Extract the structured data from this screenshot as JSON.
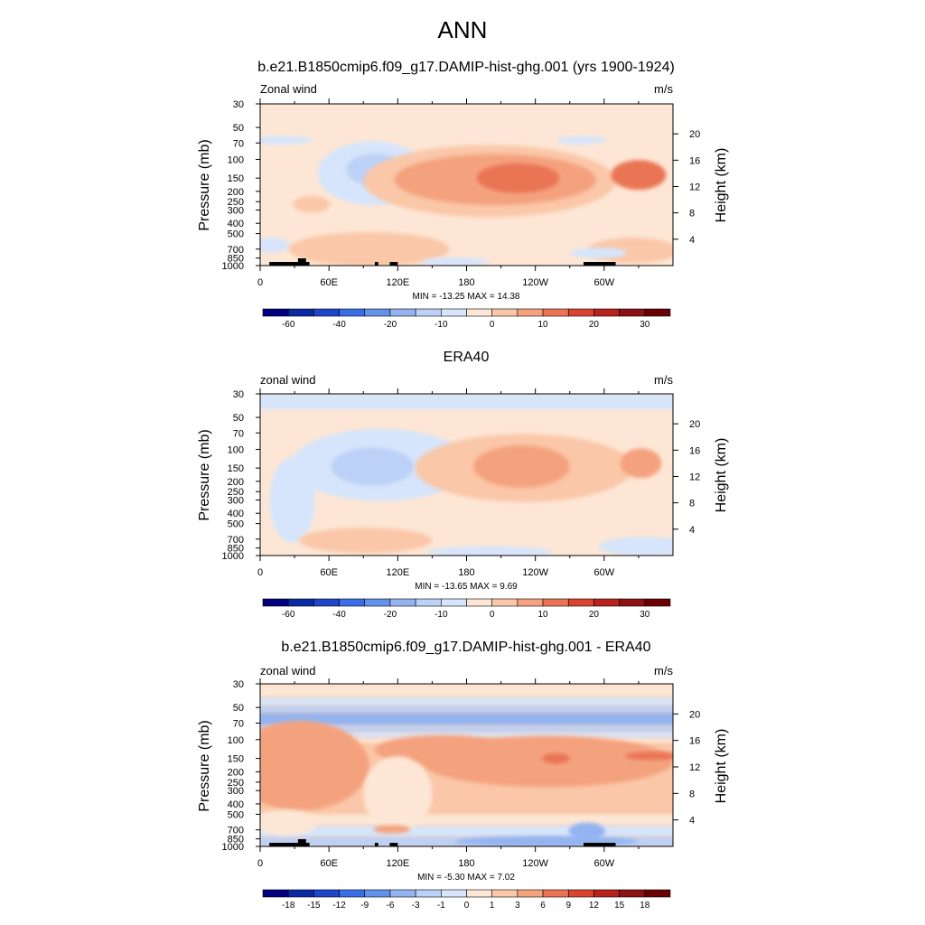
{
  "figure_title": "ANN",
  "colors": {
    "scale_a": [
      "#000080",
      "#0a2aa3",
      "#1e46c8",
      "#3a6ee6",
      "#6392ec",
      "#93b4f1",
      "#bcd1f7",
      "#d6e5fb",
      "#fde6d5",
      "#fac7a8",
      "#f4a27e",
      "#ea7454",
      "#d9442f",
      "#b8231d",
      "#8c1214",
      "#6b0004"
    ],
    "scale_b": [
      "#000080",
      "#0a2aa3",
      "#1e46c8",
      "#3a6ee6",
      "#6392ec",
      "#93b4f1",
      "#bcd1f7",
      "#d6e5fb",
      "#fde6d5",
      "#fac7a8",
      "#f4a27e",
      "#ea7454",
      "#d9442f",
      "#b8231d",
      "#8c1214",
      "#6b0004"
    ],
    "topography": "#000000"
  },
  "panels": [
    {
      "title": "b.e21.B1850cmip6.f09_g17.DAMIP-hist-ghg.001 (yrs 1900-1924)",
      "left_label": "Zonal wind",
      "right_label": "m/s",
      "stats": "MIN = -13.25  MAX =  14.38"
    },
    {
      "title": "ERA40",
      "left_label": "zonal wind",
      "right_label": "m/s",
      "stats": "MIN = -13.65  MAX =   9.69"
    },
    {
      "title": "b.e21.B1850cmip6.f09_g17.DAMIP-hist-ghg.001 - ERA40",
      "left_label": "zonal wind",
      "right_label": "m/s",
      "stats": "MIN =  -5.30  MAX =   7.02"
    }
  ],
  "chart_data": [
    {
      "type": "heatmap",
      "name": "model",
      "xlabel": "",
      "ylabel": "Pressure (mb)",
      "y2label": "Height (km)",
      "x_ticks": [
        "0",
        "60E",
        "120E",
        "180",
        "120W",
        "60W"
      ],
      "x_tick_lon": [
        0,
        60,
        120,
        180,
        240,
        300
      ],
      "xlim": [
        0,
        360
      ],
      "y_ticks": [
        "30",
        "50",
        "70",
        "100",
        "150",
        "200",
        "250",
        "300",
        "400",
        "500",
        "700",
        "850",
        "1000"
      ],
      "y_tick_p": [
        30,
        50,
        70,
        100,
        150,
        200,
        250,
        300,
        400,
        500,
        700,
        850,
        1000
      ],
      "ylim": [
        1000,
        30
      ],
      "y_scale": "log",
      "y2_ticks": [
        "4",
        "8",
        "12",
        "16",
        "20"
      ],
      "y2_tick_km": [
        4,
        8,
        12,
        16,
        20
      ],
      "background_bin": 8,
      "features": [
        {
          "bin": 7,
          "lon": 18,
          "p": 66,
          "rx": 28,
          "ry": 0.04
        },
        {
          "bin": 7,
          "lon": 280,
          "p": 66,
          "rx": 22,
          "ry": 0.04
        },
        {
          "bin": 7,
          "lon": 98,
          "p": 135,
          "rx": 48,
          "ry": 0.3
        },
        {
          "bin": 6,
          "lon": 100,
          "p": 125,
          "rx": 25,
          "ry": 0.15
        },
        {
          "bin": 7,
          "lon": 10,
          "p": 640,
          "rx": 16,
          "ry": 0.07
        },
        {
          "bin": 9,
          "lon": 200,
          "p": 160,
          "rx": 110,
          "ry": 0.34
        },
        {
          "bin": 10,
          "lon": 205,
          "p": 155,
          "rx": 88,
          "ry": 0.24
        },
        {
          "bin": 11,
          "lon": 225,
          "p": 150,
          "rx": 36,
          "ry": 0.14
        },
        {
          "bin": 11,
          "lon": 330,
          "p": 140,
          "rx": 24,
          "ry": 0.14
        },
        {
          "bin": 9,
          "lon": 45,
          "p": 265,
          "rx": 16,
          "ry": 0.08
        },
        {
          "bin": 9,
          "lon": 95,
          "p": 700,
          "rx": 70,
          "ry": 0.16
        },
        {
          "bin": 9,
          "lon": 325,
          "p": 720,
          "rx": 40,
          "ry": 0.12
        },
        {
          "bin": 7,
          "lon": 170,
          "p": 920,
          "rx": 30,
          "ry": 0.04
        },
        {
          "bin": 7,
          "lon": 295,
          "p": 760,
          "rx": 25,
          "ry": 0.05
        }
      ],
      "topography": [
        [
          8,
          35
        ],
        [
          28,
          43
        ],
        [
          100,
          103
        ],
        [
          113,
          120
        ],
        [
          282,
          310
        ]
      ],
      "colorbar_labels": [
        "-60",
        "-40",
        "-20",
        "-10",
        "0",
        "10",
        "20",
        "30"
      ],
      "stats_min": -13.25,
      "stats_max": 14.38
    },
    {
      "type": "heatmap",
      "name": "observations",
      "xlabel": "",
      "ylabel": "Pressure (mb)",
      "y2label": "Height (km)",
      "x_ticks": [
        "0",
        "60E",
        "120E",
        "180",
        "120W",
        "60W"
      ],
      "x_tick_lon": [
        0,
        60,
        120,
        180,
        240,
        300
      ],
      "xlim": [
        0,
        360
      ],
      "y_ticks": [
        "30",
        "50",
        "70",
        "100",
        "150",
        "200",
        "250",
        "300",
        "400",
        "500",
        "700",
        "850",
        "1000"
      ],
      "y_tick_p": [
        30,
        50,
        70,
        100,
        150,
        200,
        250,
        300,
        400,
        500,
        700,
        850,
        1000
      ],
      "ylim": [
        1000,
        30
      ],
      "y_scale": "log",
      "y2_ticks": [
        "4",
        "8",
        "12",
        "16",
        "20"
      ],
      "y2_tick_km": [
        4,
        8,
        12,
        16,
        20
      ],
      "background_bin": 8,
      "bands": [
        {
          "bin": 7,
          "p_top": 30,
          "p_bottom": 42
        }
      ],
      "features": [
        {
          "bin": 7,
          "lon": 105,
          "p": 140,
          "rx": 78,
          "ry": 0.34
        },
        {
          "bin": 7,
          "lon": 28,
          "p": 300,
          "rx": 20,
          "ry": 0.4
        },
        {
          "bin": 6,
          "lon": 98,
          "p": 145,
          "rx": 36,
          "ry": 0.18
        },
        {
          "bin": 9,
          "lon": 230,
          "p": 150,
          "rx": 95,
          "ry": 0.32
        },
        {
          "bin": 10,
          "lon": 228,
          "p": 145,
          "rx": 42,
          "ry": 0.2
        },
        {
          "bin": 10,
          "lon": 332,
          "p": 135,
          "rx": 18,
          "ry": 0.14
        },
        {
          "bin": 9,
          "lon": 92,
          "p": 720,
          "rx": 58,
          "ry": 0.12
        },
        {
          "bin": 7,
          "lon": 200,
          "p": 920,
          "rx": 55,
          "ry": 0.05
        },
        {
          "bin": 7,
          "lon": 335,
          "p": 820,
          "rx": 40,
          "ry": 0.09
        }
      ],
      "topography": [],
      "colorbar_labels": [
        "-60",
        "-40",
        "-20",
        "-10",
        "0",
        "10",
        "20",
        "30"
      ],
      "stats_min": -13.65,
      "stats_max": 9.69
    },
    {
      "type": "heatmap",
      "name": "difference",
      "xlabel": "",
      "ylabel": "Pressure (mb)",
      "y2label": "Height (km)",
      "x_ticks": [
        "0",
        "60E",
        "120E",
        "180",
        "120W",
        "60W"
      ],
      "x_tick_lon": [
        0,
        60,
        120,
        180,
        240,
        300
      ],
      "xlim": [
        0,
        360
      ],
      "y_ticks": [
        "30",
        "50",
        "70",
        "100",
        "150",
        "200",
        "250",
        "300",
        "400",
        "500",
        "700",
        "850",
        "1000"
      ],
      "y_tick_p": [
        30,
        50,
        70,
        100,
        150,
        200,
        250,
        300,
        400,
        500,
        700,
        850,
        1000
      ],
      "ylim": [
        1000,
        30
      ],
      "y_scale": "log",
      "y2_ticks": [
        "4",
        "8",
        "12",
        "16",
        "20"
      ],
      "y2_tick_km": [
        4,
        8,
        12,
        16,
        20
      ],
      "background_bin": 9,
      "bands": [
        {
          "bin": 8,
          "p_top": 30,
          "p_bottom": 40
        },
        {
          "bin": 7,
          "p_top": 40,
          "p_bottom": 48
        },
        {
          "bin": 6,
          "p_top": 48,
          "p_bottom": 56
        },
        {
          "bin": 5,
          "p_top": 56,
          "p_bottom": 74
        },
        {
          "bin": 6,
          "p_top": 74,
          "p_bottom": 86
        },
        {
          "bin": 7,
          "p_top": 86,
          "p_bottom": 98
        },
        {
          "bin": 8,
          "p_top": 98,
          "p_bottom": 110
        },
        {
          "bin": 9,
          "p_top": 110,
          "p_bottom": 500
        },
        {
          "bin": 8,
          "p_top": 500,
          "p_bottom": 640
        },
        {
          "bin": 7,
          "p_top": 640,
          "p_bottom": 820
        },
        {
          "bin": 6,
          "p_top": 820,
          "p_bottom": 1000
        }
      ],
      "features": [
        {
          "bin": 10,
          "lon": 35,
          "p": 175,
          "rx": 60,
          "ry": 0.42
        },
        {
          "bin": 10,
          "lon": 250,
          "p": 160,
          "rx": 110,
          "ry": 0.24
        },
        {
          "bin": 10,
          "lon": 160,
          "p": 125,
          "rx": 60,
          "ry": 0.14
        },
        {
          "bin": 11,
          "lon": 258,
          "p": 150,
          "rx": 12,
          "ry": 0.05
        },
        {
          "bin": 11,
          "lon": 342,
          "p": 142,
          "rx": 24,
          "ry": 0.04
        },
        {
          "bin": 8,
          "lon": 120,
          "p": 320,
          "rx": 30,
          "ry": 0.35
        },
        {
          "bin": 8,
          "lon": 22,
          "p": 600,
          "rx": 28,
          "ry": 0.12
        },
        {
          "bin": 10,
          "lon": 115,
          "p": 690,
          "rx": 16,
          "ry": 0.04
        },
        {
          "bin": 5,
          "lon": 285,
          "p": 720,
          "rx": 16,
          "ry": 0.08
        },
        {
          "bin": 5,
          "lon": 250,
          "p": 900,
          "rx": 80,
          "ry": 0.05
        }
      ],
      "topography": [
        [
          8,
          35
        ],
        [
          28,
          43
        ],
        [
          100,
          103
        ],
        [
          113,
          120
        ],
        [
          282,
          310
        ]
      ],
      "colorbar_labels": [
        "-18",
        "-15",
        "-12",
        "-9",
        "-6",
        "-3",
        "-1",
        "0",
        "1",
        "3",
        "6",
        "9",
        "12",
        "15",
        "18"
      ],
      "stats_min": -5.3,
      "stats_max": 7.02
    }
  ]
}
